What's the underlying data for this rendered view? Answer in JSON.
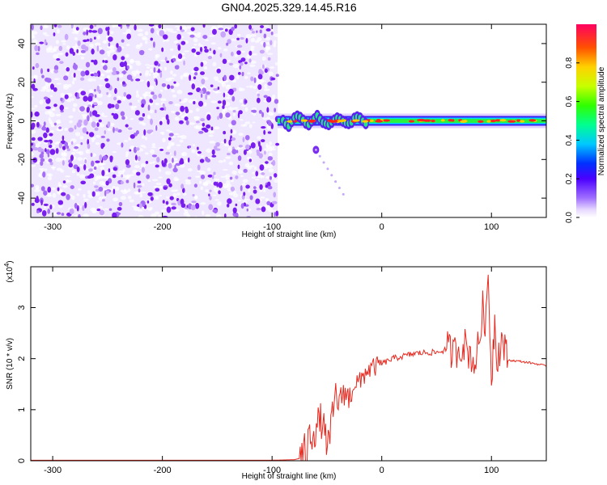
{
  "title": "GN04.2025.329.14.45.R16",
  "colors": {
    "spectrogram_noise": "#8a2be2",
    "snr_line": "#e8281e",
    "axis": "#000000"
  },
  "chart_data": [
    {
      "type": "heatmap",
      "xlabel": "Height of straight line (km)",
      "ylabel": "Frequency (Hz)",
      "xlim": [
        -320,
        150
      ],
      "ylim": [
        -50,
        50
      ],
      "xticks": [
        -300,
        -200,
        -100,
        0,
        100
      ],
      "yticks": [
        -40,
        -20,
        0,
        20,
        40
      ],
      "colorbar": {
        "label": "Normalized spectral amplitude",
        "range": [
          0.0,
          1.0
        ],
        "ticks": [
          0.0,
          0.2,
          0.4,
          0.6,
          0.8
        ],
        "tick_labels": [
          "0.0",
          "0.2",
          "0.4",
          "0.6",
          "0.8"
        ],
        "colormap": "rainbow (white→purple→blue→cyan→green→yellow→red)"
      },
      "features": {
        "noise_region_x": [
          -320,
          -95
        ],
        "signal_band_x": [
          -95,
          150
        ],
        "signal_center_hz": 0,
        "faint_tail": [
          {
            "x": -60,
            "y": -15
          },
          {
            "x": -35,
            "y": -38
          }
        ]
      }
    },
    {
      "type": "line",
      "xlabel": "Height of straight line (km)",
      "ylabel": "SNR (10 * v/v)",
      "y_scale_note": "(x10",
      "y_scale_exp": "4",
      "xlim": [
        -320,
        150
      ],
      "ylim": [
        0,
        3.8
      ],
      "xticks": [
        -300,
        -200,
        -100,
        0,
        100
      ],
      "yticks": [
        0,
        1,
        2,
        3
      ],
      "series": [
        {
          "points": [
            [
              -320,
              0.01
            ],
            [
              -200,
              0.01
            ],
            [
              -100,
              0.01
            ],
            [
              -80,
              0.02
            ],
            [
              -72,
              0.06
            ],
            [
              -68,
              0.2
            ],
            [
              -65,
              0.55
            ],
            [
              -62,
              0.6
            ],
            [
              -58,
              0.7
            ],
            [
              -55,
              0.8
            ],
            [
              -52,
              0.5
            ],
            [
              -48,
              0.3
            ],
            [
              -45,
              0.85
            ],
            [
              -42,
              1.3
            ],
            [
              -38,
              1.1
            ],
            [
              -35,
              1.4
            ],
            [
              -30,
              1.2
            ],
            [
              -25,
              1.55
            ],
            [
              -20,
              1.5
            ],
            [
              -15,
              1.75
            ],
            [
              -10,
              1.8
            ],
            [
              -5,
              1.85
            ],
            [
              0,
              1.9
            ],
            [
              10,
              2.0
            ],
            [
              20,
              2.05
            ],
            [
              30,
              2.1
            ],
            [
              40,
              2.12
            ],
            [
              50,
              2.12
            ],
            [
              55,
              2.15
            ],
            [
              60,
              2.2
            ],
            [
              65,
              2.1
            ],
            [
              70,
              2.2
            ],
            [
              75,
              2.3
            ],
            [
              80,
              2.1
            ],
            [
              85,
              1.9
            ],
            [
              90,
              2.5
            ],
            [
              92,
              3.0
            ],
            [
              95,
              2.7
            ],
            [
              97,
              3.7
            ],
            [
              100,
              1.6
            ],
            [
              103,
              2.8
            ],
            [
              105,
              2.0
            ],
            [
              110,
              2.4
            ],
            [
              113,
              2.1
            ],
            [
              115,
              1.97
            ],
            [
              125,
              1.95
            ],
            [
              135,
              1.92
            ],
            [
              145,
              1.88
            ],
            [
              150,
              1.85
            ]
          ]
        }
      ]
    }
  ]
}
